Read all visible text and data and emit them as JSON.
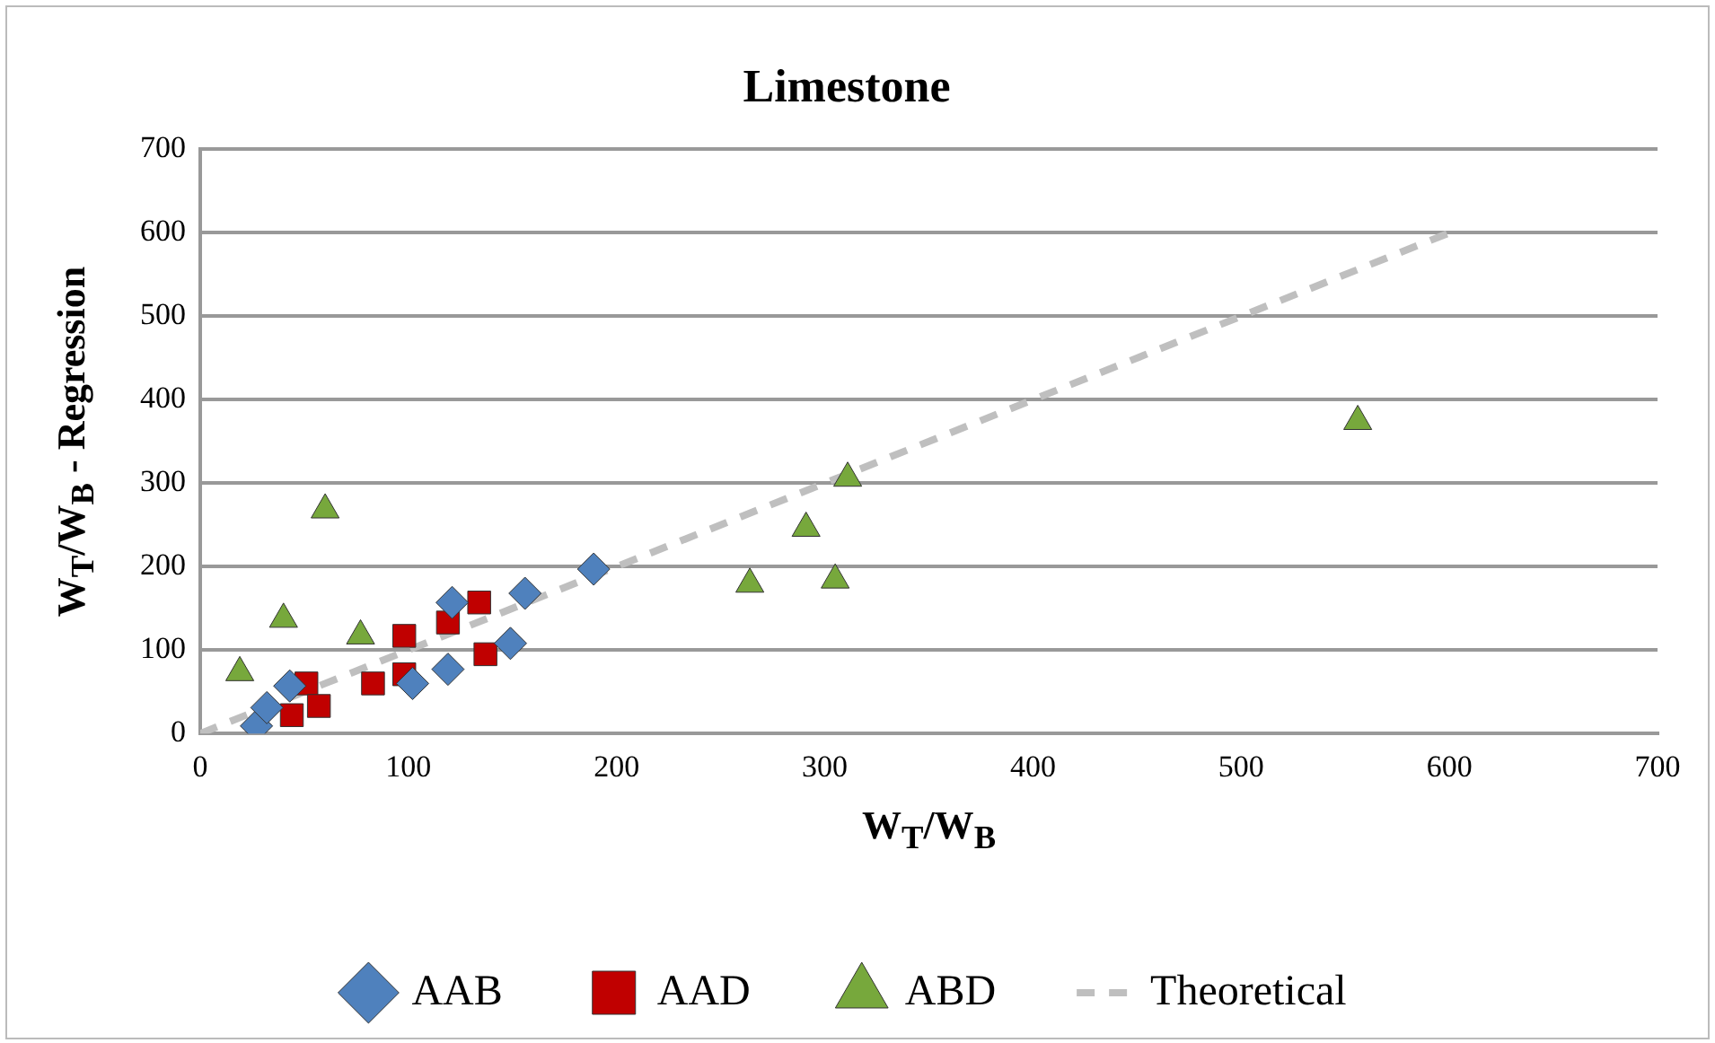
{
  "chart_data": {
    "type": "scatter",
    "title": "Limestone",
    "xlabel": "W$_{T}$/W$_{B}$",
    "ylabel": "W$_{T}$/W$_{B}$ - Regression",
    "xlim": [
      0,
      700
    ],
    "xticks": [
      0,
      100,
      200,
      300,
      400,
      500,
      600,
      700
    ],
    "ylim": [
      0,
      700
    ],
    "yticks": [
      0,
      100,
      200,
      300,
      400,
      500,
      600,
      700
    ],
    "grid": "y",
    "legend": "bottom",
    "series": [
      {
        "name": "AAB",
        "color": "#4f81bd",
        "marker": "diamond",
        "x": [
          27,
          32,
          43,
          102,
          119,
          121,
          149,
          156,
          189
        ],
        "values": [
          9,
          31,
          57,
          60,
          77,
          157,
          108,
          168,
          197
        ]
      },
      {
        "name": "AAD",
        "color": "#c00000",
        "marker": "square",
        "x": [
          44,
          51,
          57,
          83,
          98,
          98,
          119,
          134,
          137
        ],
        "values": [
          22,
          60,
          33,
          60,
          117,
          71,
          133,
          157,
          95
        ]
      },
      {
        "name": "ABD",
        "color": "#77a83c",
        "marker": "triangle",
        "x": [
          19,
          40,
          60,
          77,
          264,
          291,
          305,
          311,
          556
        ],
        "values": [
          73,
          137,
          268,
          117,
          179,
          246,
          184,
          306,
          374
        ]
      },
      {
        "name": "Theoretical",
        "type": "line",
        "color": "#bfbfbf",
        "marker": "none",
        "line_style": "dashed",
        "x": [
          0,
          600
        ],
        "values": [
          0,
          600
        ]
      }
    ]
  }
}
